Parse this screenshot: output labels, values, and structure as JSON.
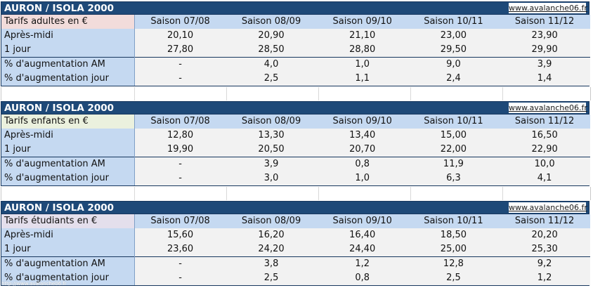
{
  "title": "AURON / ISOLA 2000",
  "site": "www.avalanche06.fr",
  "seasons": [
    "Saison 07/08",
    "Saison 08/09",
    "Saison 09/10",
    "Saison 10/11",
    "Saison 11/12"
  ],
  "row_labels": {
    "apres_midi": "Après-midi",
    "un_jour": "1 jour",
    "pct_am": "% d'augmentation AM",
    "pct_jour": "% d'augmentation jour"
  },
  "tables": [
    {
      "category": "Tarifs adultes en €",
      "apres_midi": [
        "20,10",
        "20,90",
        "21,10",
        "23,00",
        "23,90"
      ],
      "un_jour": [
        "27,80",
        "28,50",
        "28,80",
        "29,50",
        "29,90"
      ],
      "pct_am": [
        "-",
        "4,0",
        "1,0",
        "9,0",
        "3,9"
      ],
      "pct_jour": [
        "-",
        "2,5",
        "1,1",
        "2,4",
        "1,4"
      ]
    },
    {
      "category": "Tarifs enfants en €",
      "apres_midi": [
        "12,80",
        "13,30",
        "13,40",
        "15,00",
        "16,50"
      ],
      "un_jour": [
        "19,90",
        "20,50",
        "20,70",
        "22,00",
        "22,90"
      ],
      "pct_am": [
        "-",
        "3,9",
        "0,8",
        "11,9",
        "10,0"
      ],
      "pct_jour": [
        "-",
        "3,0",
        "1,0",
        "6,3",
        "4,1"
      ]
    },
    {
      "category": "Tarifs étudiants en €",
      "apres_midi": [
        "15,60",
        "16,20",
        "16,40",
        "18,50",
        "20,20"
      ],
      "un_jour": [
        "23,60",
        "24,20",
        "24,40",
        "25,00",
        "25,30"
      ],
      "pct_am": [
        "-",
        "3,8",
        "1,2",
        "12,8",
        "9,2"
      ],
      "pct_jour": [
        "-",
        "2,5",
        "0,8",
        "2,5",
        "1,2"
      ]
    }
  ],
  "watermark": "http://www.avalanche06.fr"
}
